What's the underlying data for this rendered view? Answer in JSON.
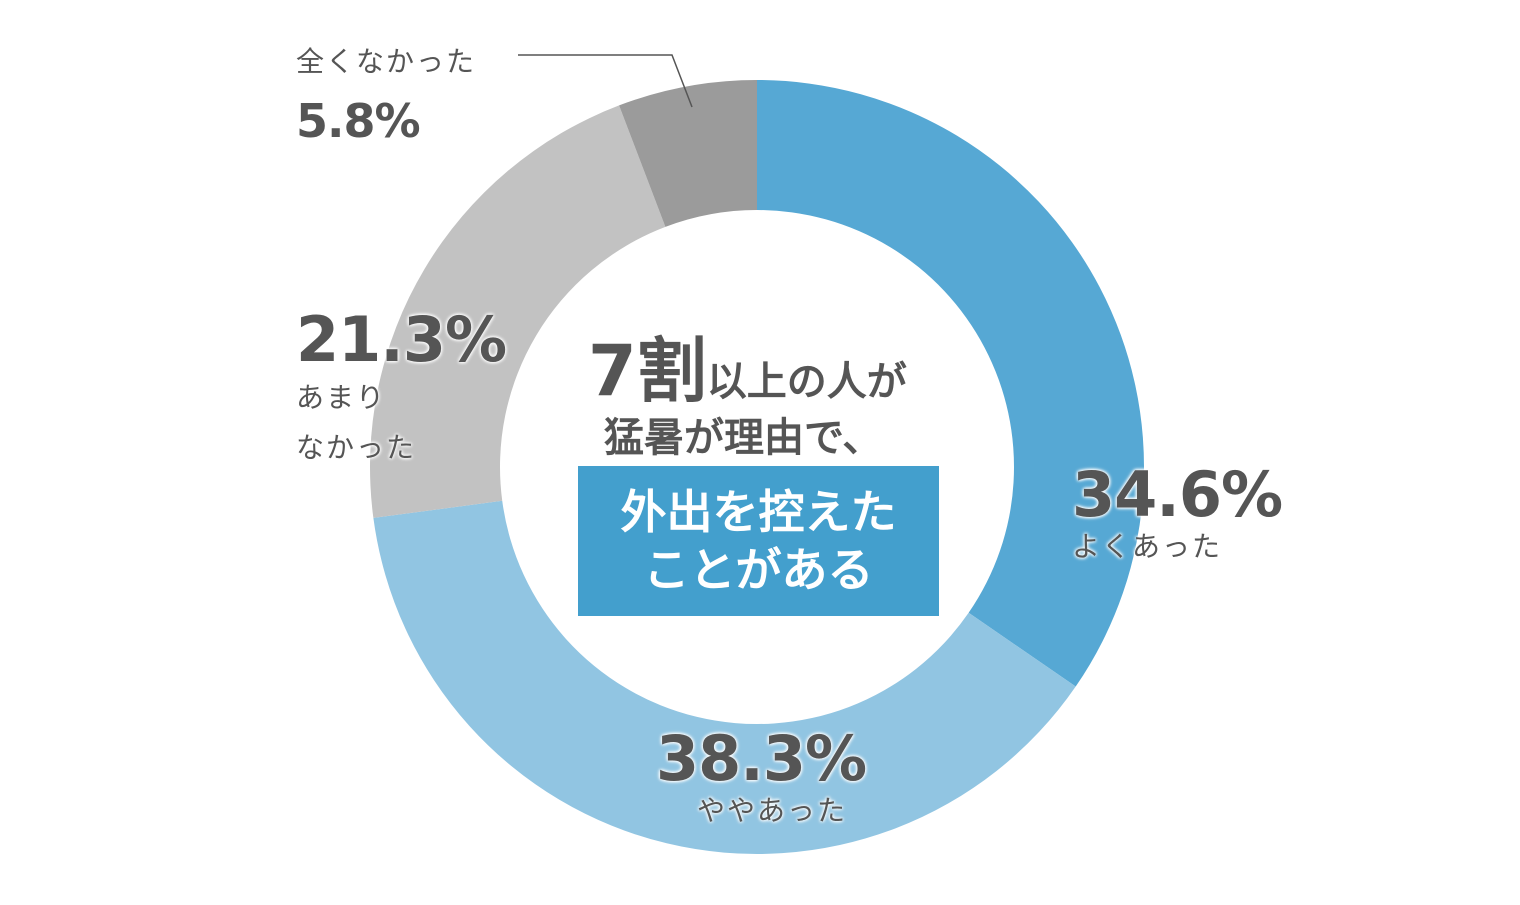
{
  "chart_data": {
    "type": "pie",
    "donut": true,
    "start": "top",
    "direction": "clockwise",
    "slices": [
      {
        "label": "よくあった",
        "value": 34.6,
        "display": "34.6%",
        "color": "#56a8d4"
      },
      {
        "label": "ややあった",
        "value": 38.3,
        "display": "38.3%",
        "color": "#91c5e2"
      },
      {
        "label": "あまりなかった",
        "label_lines": [
          "あまり",
          "なかった"
        ],
        "value": 21.3,
        "display": "21.3%",
        "color": "#c2c2c2"
      },
      {
        "label": "全くなかった",
        "value": 5.8,
        "display": "5.8%",
        "color": "#9b9b9b"
      }
    ],
    "center_text": {
      "line1_big": "7割",
      "line1_rest": "以上の人が",
      "line2": "猛暑が理由で、",
      "highlight_line1": "外出を控えた",
      "highlight_line2": "ことがある",
      "highlight_color": "#439fcd"
    }
  }
}
